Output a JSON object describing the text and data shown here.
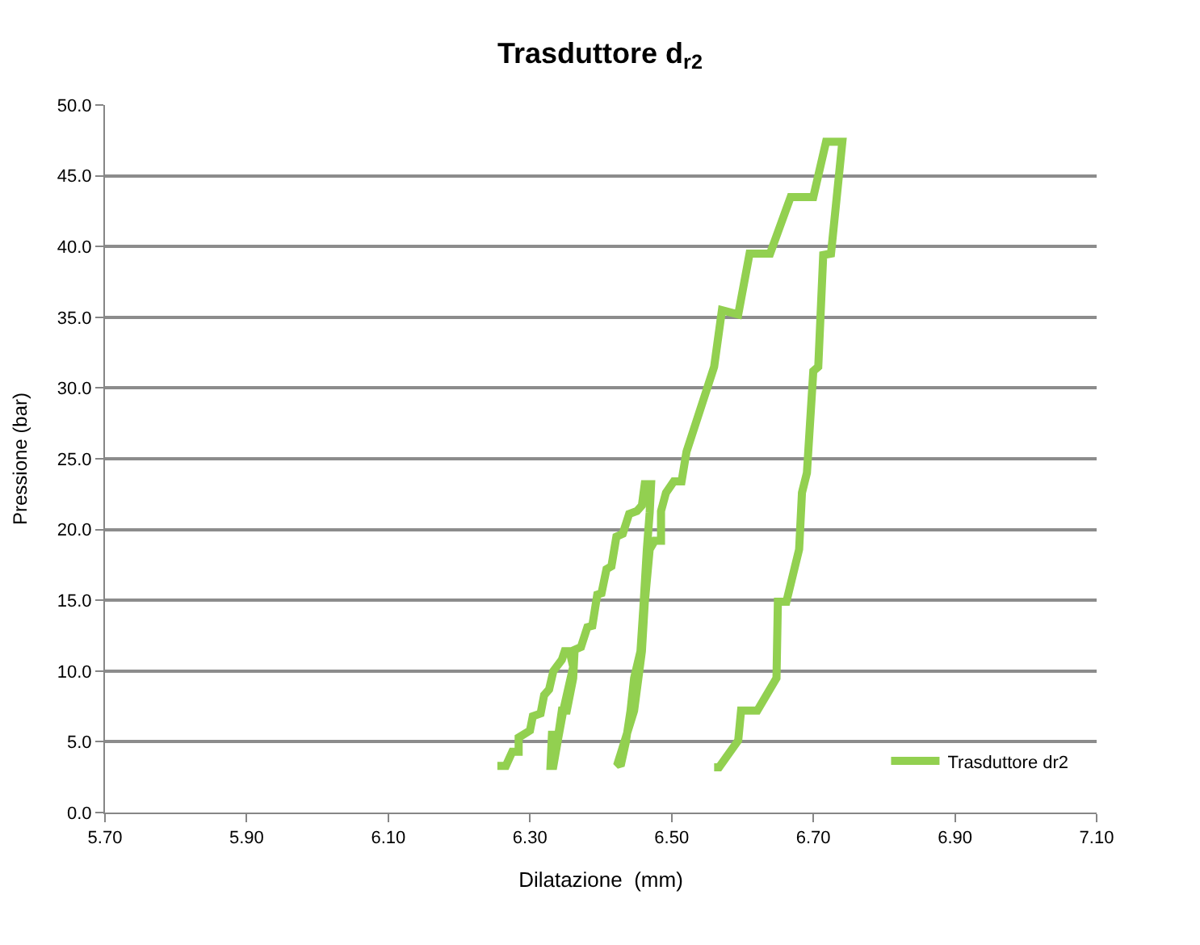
{
  "chart_data": {
    "type": "line",
    "title": "Trasduttore d$_{r2}$",
    "xlabel": "Dilatazione  (mm)",
    "ylabel": "Pressione (bar)",
    "series": [
      {
        "name": "Trasduttore dr2",
        "color": "#92d050",
        "x": [
          6.254,
          6.266,
          6.275,
          6.284,
          6.284,
          6.3,
          6.304,
          6.315,
          6.32,
          6.327,
          6.333,
          6.345,
          6.349,
          6.356,
          6.361,
          6.347,
          6.34,
          6.333,
          6.329,
          6.331,
          6.34,
          6.345,
          6.352,
          6.361,
          6.363,
          6.372,
          6.381,
          6.388,
          6.395,
          6.401,
          6.408,
          6.415,
          6.422,
          6.431,
          6.44,
          6.451,
          6.458,
          6.462,
          6.471,
          6.469,
          6.465,
          6.46,
          6.456,
          6.447,
          6.442,
          6.435,
          6.428,
          6.424,
          6.447,
          6.458,
          6.462,
          6.469,
          6.476,
          6.485,
          6.485,
          6.492,
          6.503,
          6.514,
          6.521,
          6.56,
          6.571,
          6.594,
          6.61,
          6.639,
          6.668,
          6.7,
          6.718,
          6.741,
          6.725,
          6.714,
          6.707,
          6.7,
          6.691,
          6.684,
          6.68,
          6.662,
          6.65,
          6.648,
          6.621,
          6.598,
          6.594,
          6.567,
          6.56
        ],
        "values": [
          3.3,
          3.3,
          4.3,
          4.3,
          5.3,
          5.8,
          6.8,
          7.0,
          8.3,
          8.7,
          10.0,
          10.8,
          11.4,
          11.4,
          10.3,
          7.2,
          5.3,
          3.3,
          3.3,
          5.5,
          5.5,
          7.2,
          7.2,
          9.5,
          11.5,
          11.7,
          13.1,
          13.2,
          15.4,
          15.5,
          17.2,
          17.4,
          19.5,
          19.7,
          21.1,
          21.3,
          21.7,
          23.2,
          23.2,
          21.2,
          18.6,
          14.4,
          11.4,
          9.5,
          7.2,
          4.9,
          3.3,
          3.5,
          7.2,
          11.4,
          14.8,
          18.6,
          19.2,
          19.2,
          21.3,
          22.6,
          23.4,
          23.4,
          25.5,
          31.5,
          35.5,
          35.2,
          39.5,
          39.5,
          43.5,
          43.5,
          47.4,
          47.4,
          39.5,
          39.4,
          31.5,
          31.2,
          24.0,
          22.6,
          18.6,
          14.9,
          14.9,
          9.5,
          7.2,
          7.2,
          5.1,
          3.2,
          3.2
        ]
      }
    ],
    "xlim": [
      5.7,
      7.1
    ],
    "xticks": [
      {
        "value": 5.7,
        "label": "5.70"
      },
      {
        "value": 5.9,
        "label": "5.90"
      },
      {
        "value": 6.1,
        "label": "6.10"
      },
      {
        "value": 6.3,
        "label": "6.30"
      },
      {
        "value": 6.5,
        "label": "6.50"
      },
      {
        "value": 6.7,
        "label": "6.70"
      },
      {
        "value": 6.9,
        "label": "6.90"
      },
      {
        "value": 7.1,
        "label": "7.10"
      }
    ],
    "ylim": [
      0,
      50
    ],
    "yticks": [
      {
        "value": 0,
        "label": "0.0"
      },
      {
        "value": 5,
        "label": "5.0"
      },
      {
        "value": 10,
        "label": "10.0"
      },
      {
        "value": 15,
        "label": "15.0"
      },
      {
        "value": 20,
        "label": "20.0"
      },
      {
        "value": 25,
        "label": "25.0"
      },
      {
        "value": 30,
        "label": "30.0"
      },
      {
        "value": 35,
        "label": "35.0"
      },
      {
        "value": 40,
        "label": "40.0"
      },
      {
        "value": 45,
        "label": "45.0"
      },
      {
        "value": 50,
        "label": "50.0"
      }
    ],
    "grid": "y",
    "legend": "bottom right",
    "marker": "none",
    "line_style": "solid"
  }
}
